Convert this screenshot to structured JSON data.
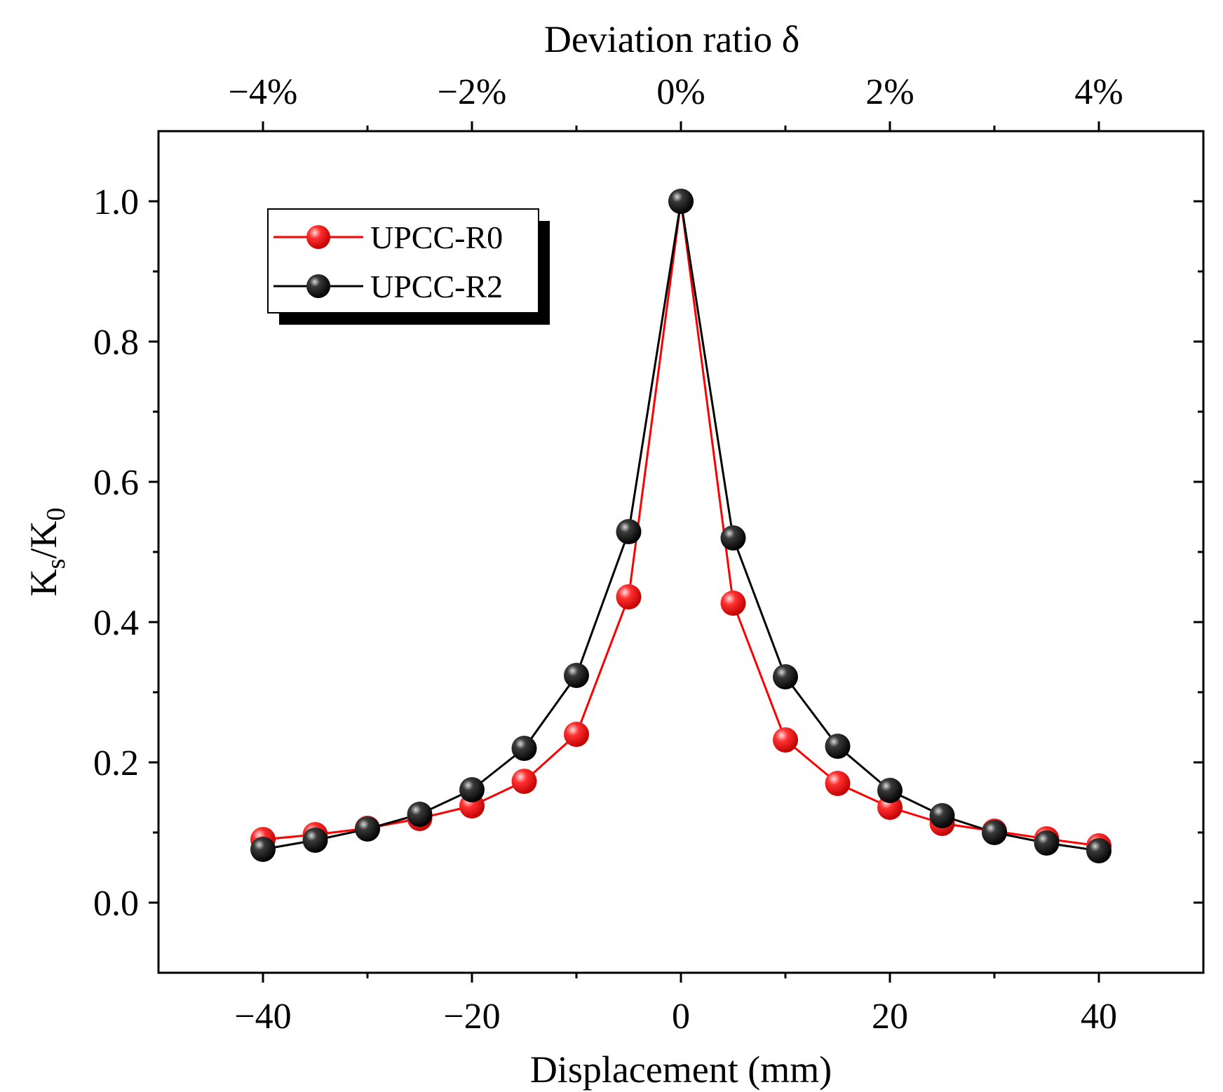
{
  "chart_data": {
    "type": "line",
    "title": "",
    "xlabel": "Displacement (mm)",
    "top_xlabel": "Deviation ratio δ",
    "ylabel": {
      "K": "K",
      "sub_s": "s",
      "slash": "/",
      "K2": "K",
      "sub_0": "0"
    },
    "xlim": [
      -50,
      50
    ],
    "ylim": [
      -0.1,
      1.1
    ],
    "x_ticks": [
      -40,
      -20,
      0,
      20,
      40
    ],
    "x_tick_labels": [
      "−40",
      "−20",
      "0",
      "20",
      "40"
    ],
    "x_minor_ticks": [
      -30,
      -10,
      10,
      30
    ],
    "y_ticks": [
      0.0,
      0.2,
      0.4,
      0.6,
      0.8,
      1.0
    ],
    "y_tick_labels": [
      "0.0",
      "0.2",
      "0.4",
      "0.6",
      "0.8",
      "1.0"
    ],
    "y_minor_ticks": [
      0.1,
      0.3,
      0.5,
      0.7,
      0.9
    ],
    "top_ticks": [
      -40,
      -20,
      0,
      20,
      40
    ],
    "top_tick_labels": [
      "−4%",
      "−2%",
      "0%",
      "2%",
      "4%"
    ],
    "top_minor_ticks": [
      -30,
      -10,
      10,
      30
    ],
    "legend_position": "top-left",
    "grid": false,
    "x": [
      -40,
      -35,
      -30,
      -25,
      -20,
      -15,
      -10,
      -5,
      0,
      5,
      10,
      15,
      20,
      25,
      30,
      35,
      40
    ],
    "series": [
      {
        "name": "UPCC-R0",
        "color": "#ff0000",
        "values": [
          0.09,
          0.097,
          0.106,
          0.12,
          0.138,
          0.173,
          0.24,
          0.436,
          1.0,
          0.427,
          0.232,
          0.17,
          0.136,
          0.113,
          0.102,
          0.091,
          0.081
        ]
      },
      {
        "name": "UPCC-R2",
        "color": "#000000",
        "values": [
          0.076,
          0.089,
          0.105,
          0.126,
          0.161,
          0.22,
          0.324,
          0.529,
          1.0,
          0.52,
          0.322,
          0.223,
          0.16,
          0.124,
          0.1,
          0.085,
          0.074
        ]
      }
    ]
  }
}
